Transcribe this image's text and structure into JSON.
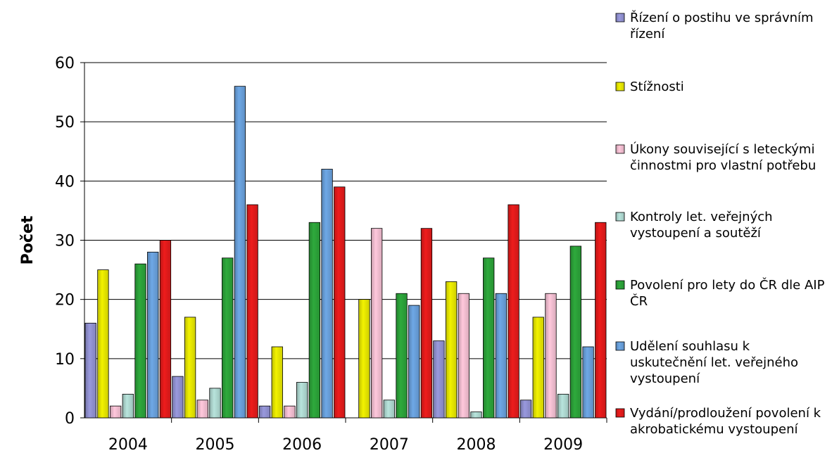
{
  "chart_data": {
    "type": "bar",
    "title": "",
    "xlabel": "",
    "ylabel": "Počet",
    "ylim": [
      0,
      60
    ],
    "yticks": [
      0,
      10,
      20,
      30,
      40,
      50,
      60
    ],
    "grid": true,
    "legend_position": "right",
    "categories": [
      "2004",
      "2005",
      "2006",
      "2007",
      "2008",
      "2009"
    ],
    "series": [
      {
        "name": "Řízení o postihu ve správním řízení",
        "color": "#9999dd",
        "values": [
          16,
          7,
          2,
          0,
          13,
          3
        ]
      },
      {
        "name": "Stížnosti",
        "color": "#f2f200",
        "values": [
          25,
          17,
          12,
          20,
          23,
          17
        ]
      },
      {
        "name": "Úkony související s leteckými činnostmi pro vlastní potřebu",
        "color": "#ffc8dc",
        "values": [
          2,
          3,
          2,
          32,
          21,
          21
        ]
      },
      {
        "name": "Kontroly let. veřejných vystoupení a soutěží",
        "color": "#b8e4dc",
        "values": [
          4,
          5,
          6,
          3,
          1,
          4
        ]
      },
      {
        "name": "Povolení pro lety do ČR dle AIP ČR",
        "color": "#2eaa3c",
        "values": [
          26,
          27,
          33,
          21,
          27,
          29
        ]
      },
      {
        "name": "Udělení souhlasu k uskutečnění let. veřejného vystoupení",
        "color": "#6ea8e6",
        "values": [
          28,
          56,
          42,
          19,
          21,
          12
        ]
      },
      {
        "name": "Vydání/prodloužení povolení k akrobatickému vystoupení",
        "color": "#ee1c1c",
        "values": [
          30,
          36,
          39,
          32,
          36,
          33
        ]
      }
    ]
  }
}
